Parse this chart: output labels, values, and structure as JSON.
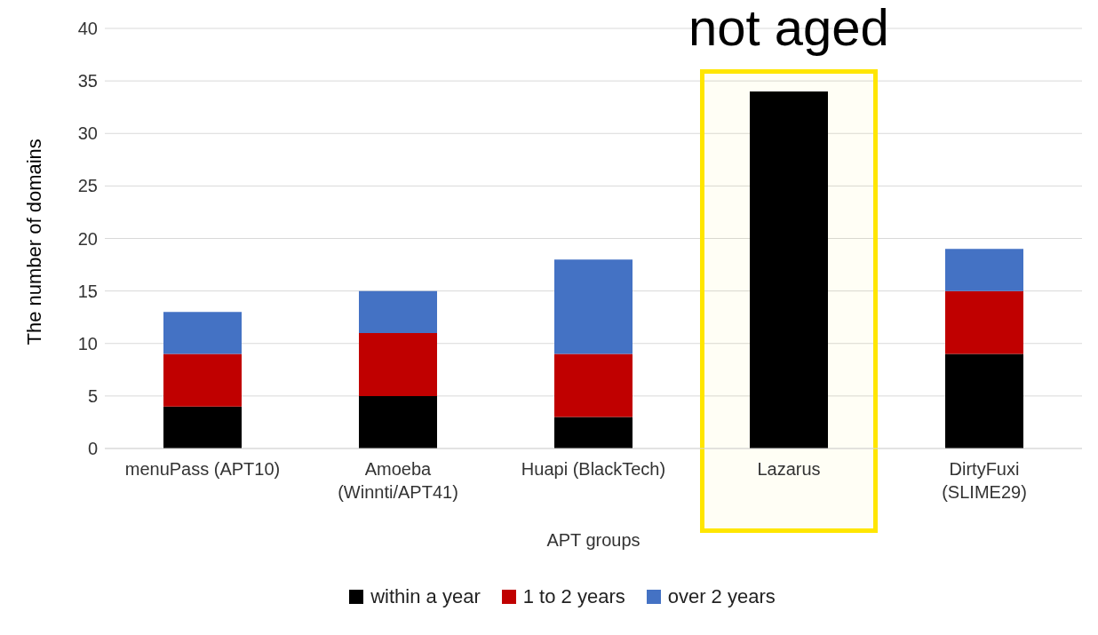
{
  "chart_data": {
    "type": "bar",
    "stacked": true,
    "xlabel": "APT groups",
    "ylabel": "The number of domains",
    "categories": [
      "menuPass (APT10)",
      "Amoeba (Winnti/APT41)",
      "Huapi (BlackTech)",
      "Lazarus",
      "DirtyFuxi (SLIME29)"
    ],
    "series": [
      {
        "name": "within a year",
        "color": "#000000",
        "values": [
          4,
          5,
          3,
          34,
          9
        ]
      },
      {
        "name": "1 to 2 years",
        "color": "#c00000",
        "values": [
          5,
          6,
          6,
          0,
          6
        ]
      },
      {
        "name": "over 2 years",
        "color": "#4472c4",
        "values": [
          4,
          4,
          9,
          0,
          4
        ]
      }
    ],
    "ylim": [
      0,
      40
    ],
    "yticks": [
      0,
      5,
      10,
      15,
      20,
      25,
      30,
      35,
      40
    ],
    "grid": "y",
    "legend": "bottom",
    "bands": [
      {
        "axis": "x",
        "from": "Lazarus",
        "to": "Lazarus",
        "color": "#ffe600"
      }
    ],
    "annotations": [
      "not aged"
    ]
  }
}
